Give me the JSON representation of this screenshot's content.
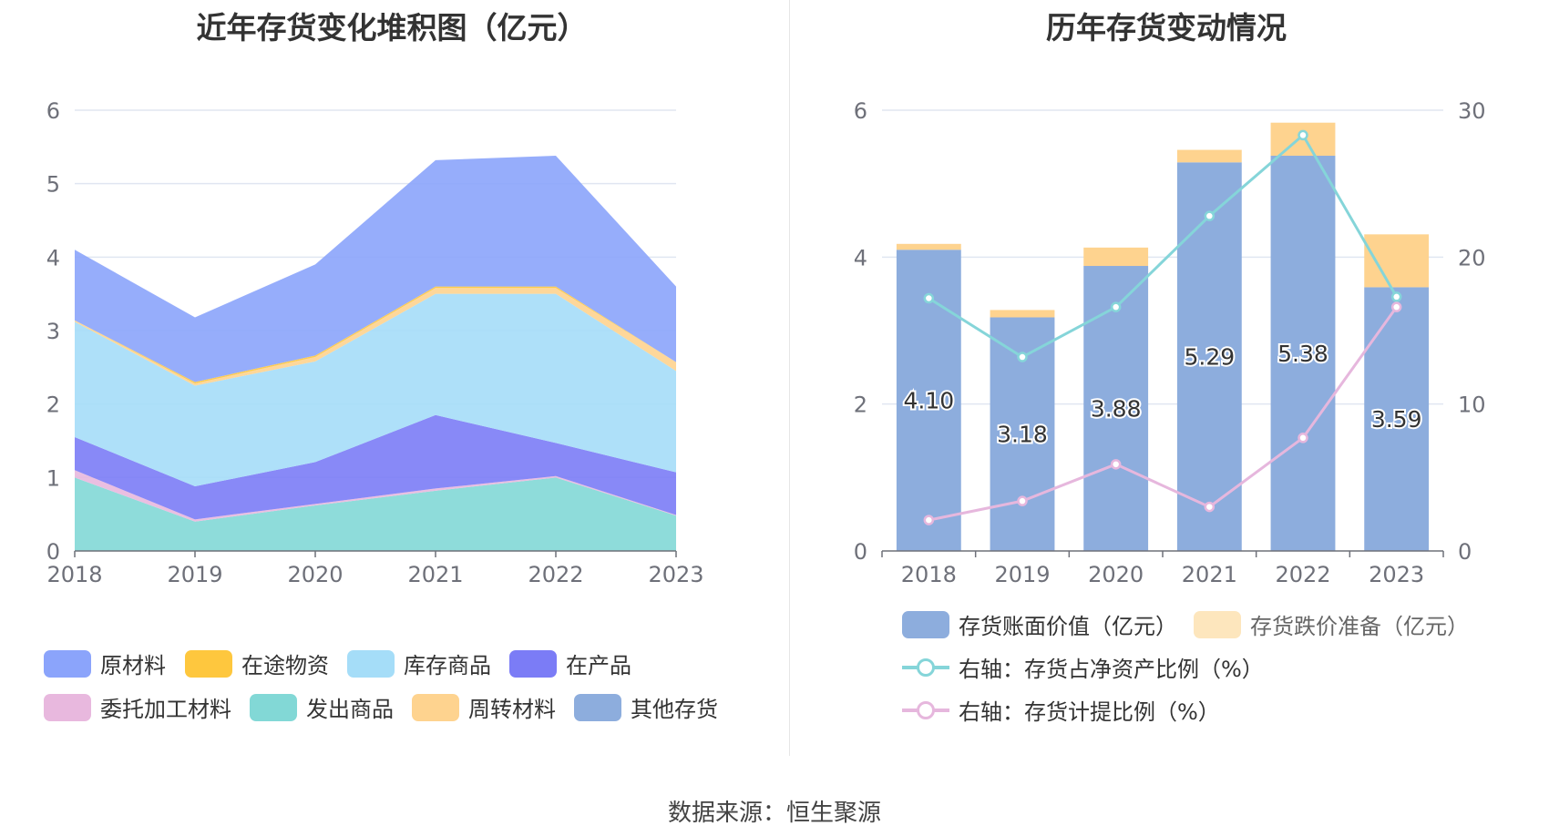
{
  "left": {
    "title": "近年存货变化堆积图（亿元）",
    "legend": [
      {
        "name": "原材料",
        "color": "#8ba4fb"
      },
      {
        "name": "在途物资",
        "color": "#fec73e"
      },
      {
        "name": "库存商品",
        "color": "#a5ddf8"
      },
      {
        "name": "在产品",
        "color": "#7b7cf6"
      },
      {
        "name": "委托加工材料",
        "color": "#e8b8de"
      },
      {
        "name": "发出商品",
        "color": "#82d8d6"
      },
      {
        "name": "周转材料",
        "color": "#fed38f"
      },
      {
        "name": "其他存货",
        "color": "#8daddd"
      }
    ]
  },
  "right": {
    "title": "历年存货变动情况",
    "legend": [
      {
        "name": "存货账面价值（亿元）",
        "color": "#8daddd",
        "kind": "bar"
      },
      {
        "name": "存货跌价准备（亿元）",
        "color": "#fde6bd",
        "kind": "bar"
      },
      {
        "name": "右轴：存货占净资产比例（%）",
        "color": "#85d5d9",
        "kind": "line"
      },
      {
        "name": "右轴：存货计提比例（%）",
        "color": "#e6b7dd",
        "kind": "line"
      }
    ]
  },
  "source": "数据来源：恒生聚源",
  "chart_data": [
    {
      "type": "area",
      "stacked": true,
      "title": "近年存货变化堆积图（亿元）",
      "x": [
        "2018",
        "2019",
        "2020",
        "2021",
        "2022",
        "2023"
      ],
      "ylim": [
        0,
        6
      ],
      "yticks": [
        0,
        1,
        2,
        3,
        4,
        5,
        6
      ],
      "grid": true,
      "legend_position": "bottom",
      "series": [
        {
          "name": "发出商品",
          "color": "#82d8d6",
          "values": [
            1.0,
            0.4,
            0.62,
            0.82,
            1.0,
            0.48
          ]
        },
        {
          "name": "委托加工材料",
          "color": "#e8b8de",
          "values": [
            0.1,
            0.03,
            0.02,
            0.03,
            0.02,
            0.01
          ]
        },
        {
          "name": "在产品",
          "color": "#7b7cf6",
          "values": [
            0.45,
            0.45,
            0.57,
            1.0,
            0.45,
            0.58
          ]
        },
        {
          "name": "库存商品",
          "color": "#a5ddf8",
          "values": [
            1.57,
            1.37,
            1.37,
            1.65,
            2.03,
            1.38
          ]
        },
        {
          "name": "周转材料",
          "color": "#fed38f",
          "values": [
            0.02,
            0.03,
            0.06,
            0.08,
            0.08,
            0.12
          ]
        },
        {
          "name": "在途物资",
          "color": "#fec73e",
          "values": [
            0.0,
            0.02,
            0.02,
            0.02,
            0.02,
            0.0
          ]
        },
        {
          "name": "原材料",
          "color": "#8ba4fb",
          "values": [
            0.96,
            0.88,
            1.24,
            1.72,
            1.78,
            1.03
          ]
        },
        {
          "name": "其他存货",
          "color": "#8daddd",
          "values": [
            0,
            0,
            0,
            0,
            0,
            0
          ]
        }
      ]
    },
    {
      "type": "bar",
      "stacked": true,
      "title": "历年存货变动情况",
      "categories": [
        "2018",
        "2019",
        "2020",
        "2021",
        "2022",
        "2023"
      ],
      "ylim": [
        0,
        6
      ],
      "yticks": [
        0,
        2,
        4,
        6
      ],
      "y2lim": [
        0,
        30
      ],
      "y2ticks": [
        0,
        10,
        20,
        30
      ],
      "grid": true,
      "legend_position": "bottom",
      "series": [
        {
          "name": "存货账面价值（亿元）",
          "color": "#8daddd",
          "axis": "left",
          "kind": "bar",
          "values": [
            4.1,
            3.18,
            3.88,
            5.29,
            5.38,
            3.59
          ],
          "labels": [
            "4.10",
            "3.18",
            "3.88",
            "5.29",
            "5.38",
            "3.59"
          ]
        },
        {
          "name": "存货跌价准备（亿元）",
          "color": "#fed38f",
          "axis": "left",
          "kind": "bar",
          "values": [
            0.08,
            0.1,
            0.25,
            0.17,
            0.45,
            0.72
          ]
        },
        {
          "name": "右轴：存货占净资产比例（%）",
          "color": "#85d5d9",
          "axis": "right",
          "kind": "line",
          "values": [
            17.2,
            13.2,
            16.6,
            22.8,
            28.3,
            17.3
          ]
        },
        {
          "name": "右轴：存货计提比例（%）",
          "color": "#e6b7dd",
          "axis": "right",
          "kind": "line",
          "values": [
            2.1,
            3.4,
            5.9,
            3.0,
            7.7,
            16.6
          ]
        }
      ]
    }
  ]
}
